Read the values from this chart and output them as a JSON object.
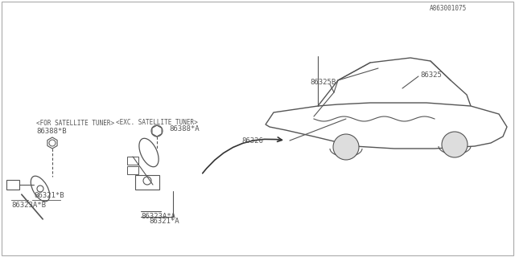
{
  "title": "",
  "bg_color": "#ffffff",
  "border_color": "#000000",
  "line_color": "#555555",
  "text_color": "#555555",
  "fig_width": 6.4,
  "fig_height": 3.2,
  "dpi": 100,
  "labels": {
    "86321A": "86321*A",
    "86323AA": "86323A*A",
    "86321B": "86321*B",
    "86323AB": "86323A*B",
    "86325": "86325",
    "86325B": "86325B",
    "86326": "86326",
    "86388A": "86388*A",
    "86388A_sub": "<EXC. SATELLITE TUNER>",
    "86388B": "86388*B",
    "86388B_sub": "<FOR SATELLITE TUNER>",
    "part_num": "A863001075"
  }
}
